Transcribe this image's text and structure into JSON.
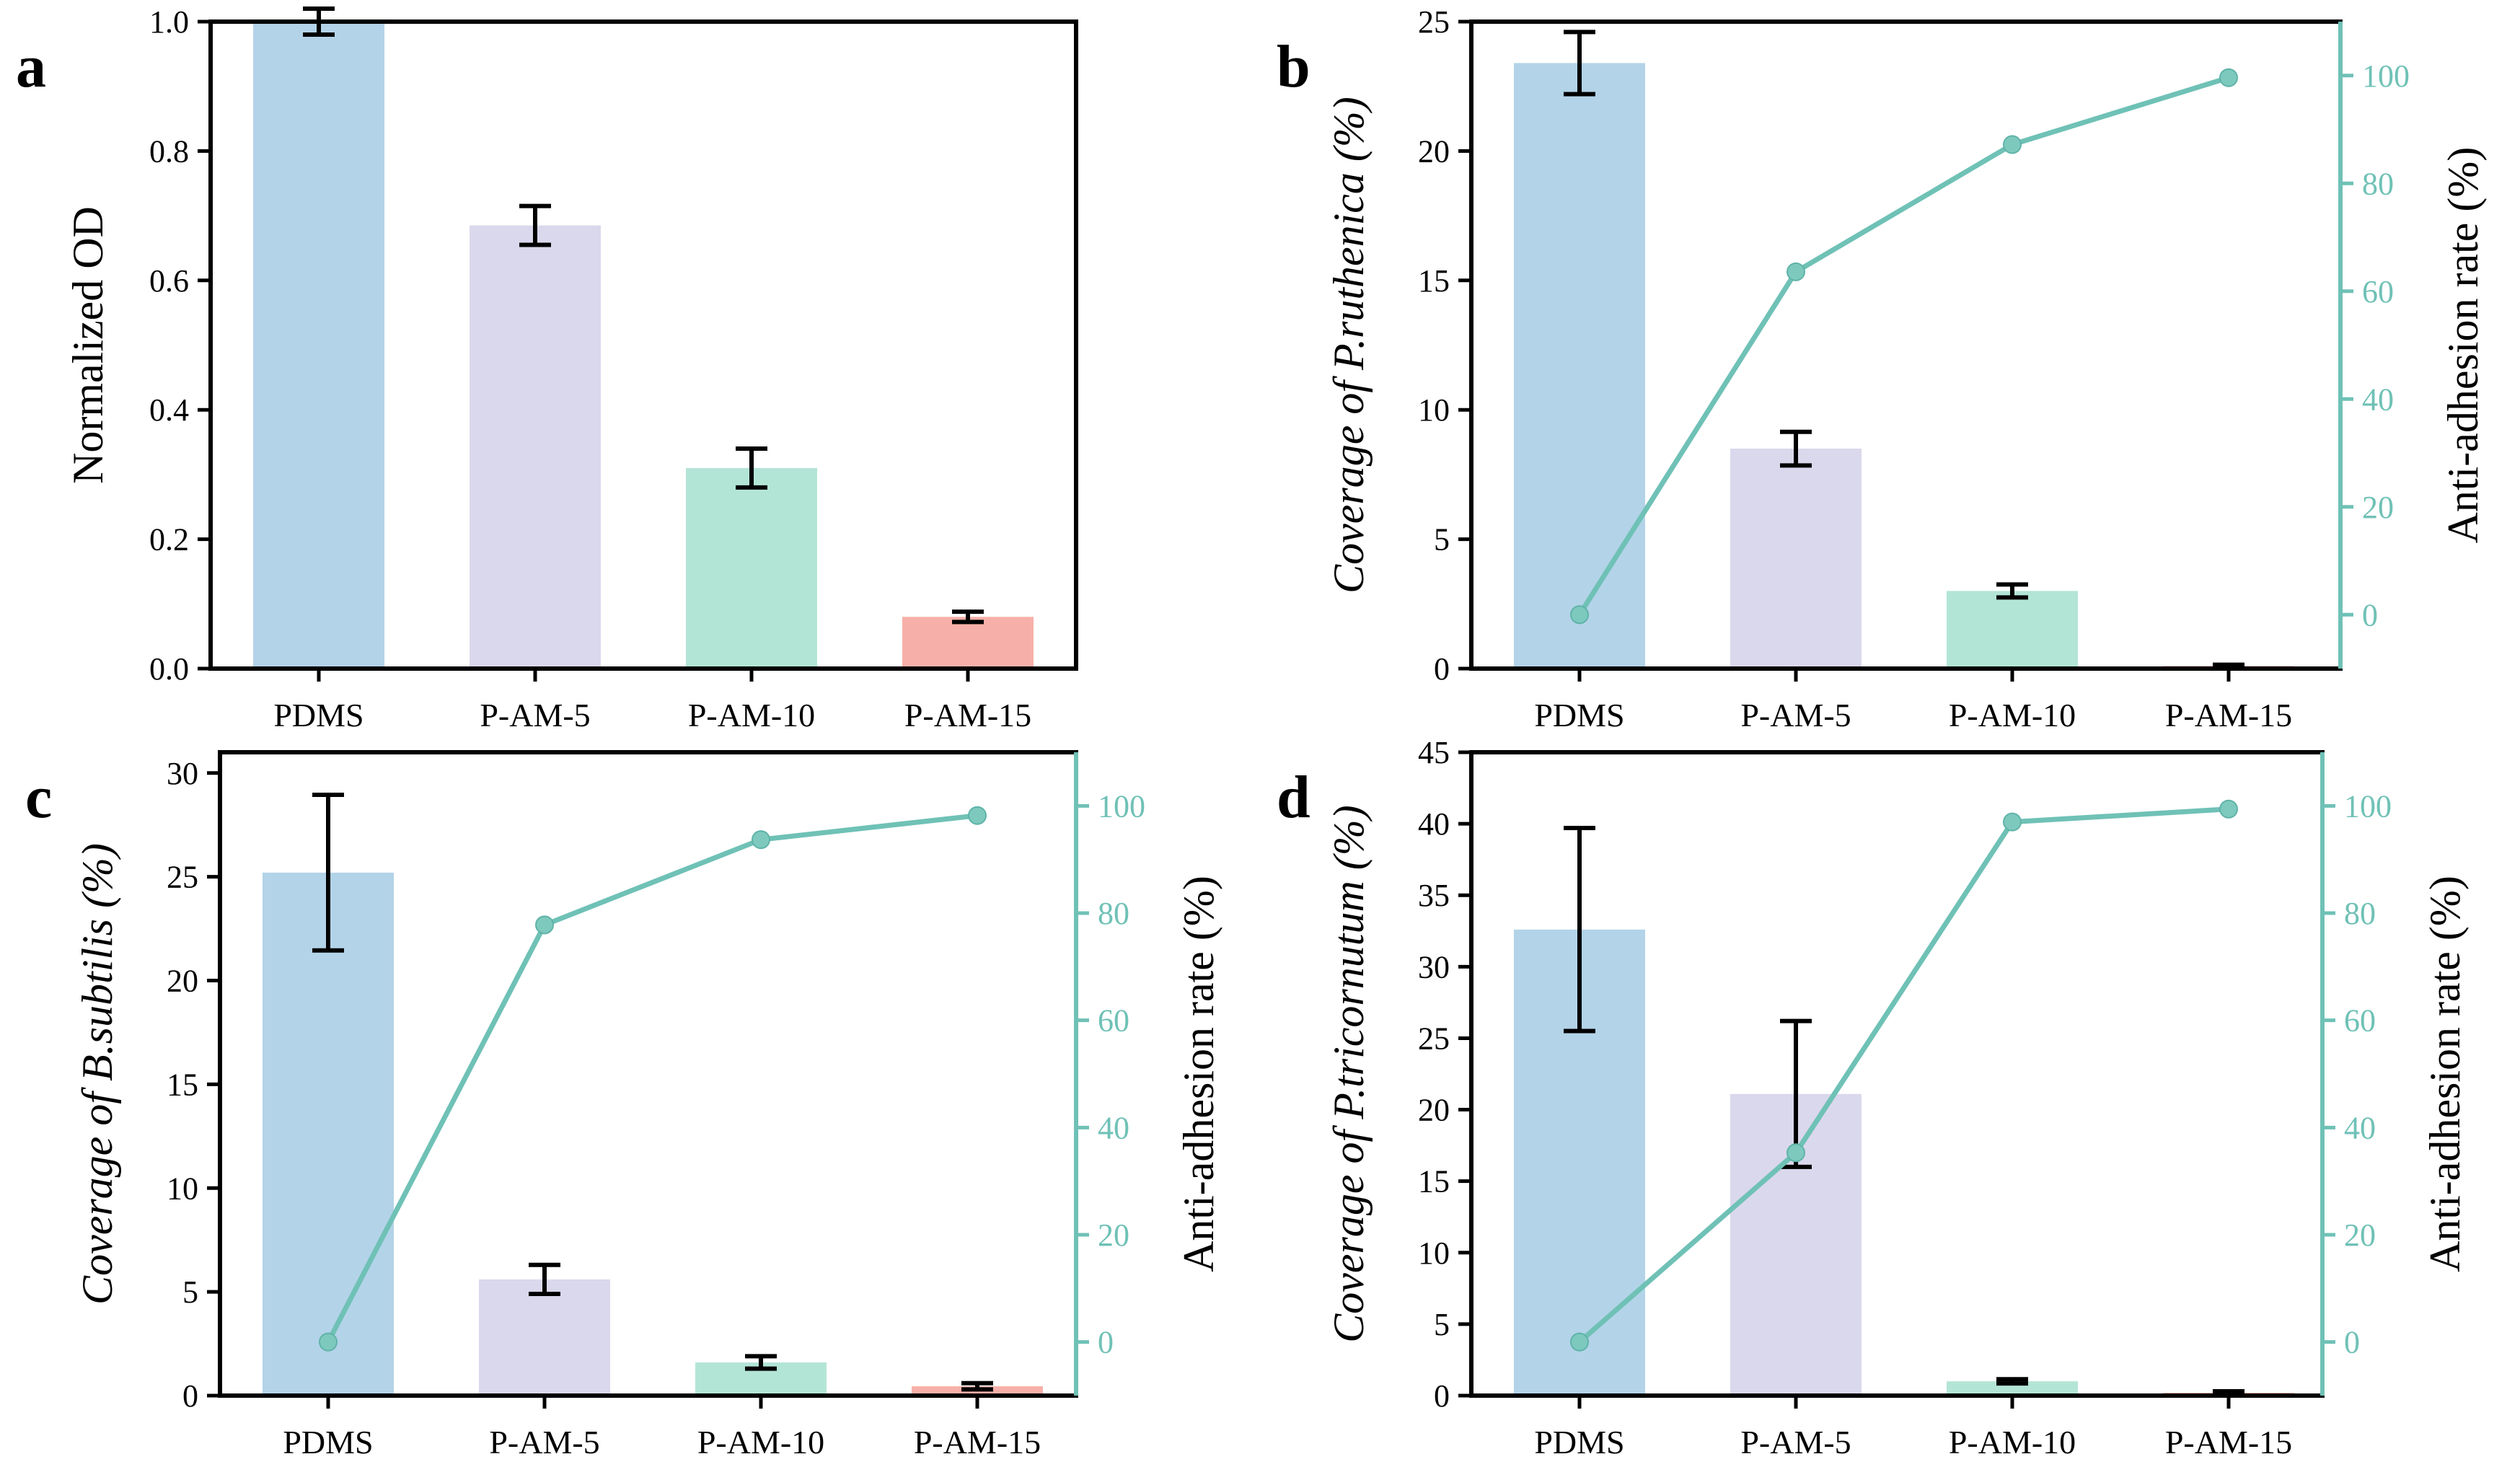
{
  "colors": {
    "bars": [
      "#b3d3e8",
      "#dad8ec",
      "#b3e5d7",
      "#f7b0a9"
    ],
    "line": "#6fc1b6",
    "marker": "#7ec9be",
    "axis": "#000000",
    "right_axis": "#6fc1b6"
  },
  "chart_data": [
    {
      "panel": "a",
      "type": "bar",
      "categories": [
        "PDMS",
        "P-AM-5",
        "P-AM-10",
        "P-AM-15"
      ],
      "values": [
        1.0,
        0.685,
        0.31,
        0.08
      ],
      "errors": [
        0.02,
        0.03,
        0.03,
        0.008
      ],
      "ylabel": "Normalized OD",
      "ylabel_italic": false,
      "ylim": [
        0,
        1.0
      ],
      "yticks": [
        "0.0",
        "0.2",
        "0.4",
        "0.6",
        "0.8",
        "1.0"
      ]
    },
    {
      "panel": "b",
      "type": "bar+line",
      "categories": [
        "PDMS",
        "P-AM-5",
        "P-AM-10",
        "P-AM-15"
      ],
      "values": [
        23.4,
        8.5,
        3.0,
        0.1
      ],
      "errors": [
        1.2,
        0.65,
        0.25,
        0.05
      ],
      "ylabel": "Coverage of P.ruthenica (%)",
      "ylabel_italic": true,
      "ylim": [
        0,
        25
      ],
      "yticks": [
        "0",
        "5",
        "10",
        "15",
        "20",
        "25"
      ],
      "line_values": [
        0,
        63.6,
        87.2,
        99.6
      ],
      "y2label": "Anti-adhesion rate (%)",
      "y2lim": [
        -10,
        110
      ],
      "y2ticks": [
        "0",
        "20",
        "40",
        "60",
        "80",
        "100"
      ]
    },
    {
      "panel": "c",
      "type": "bar+line",
      "categories": [
        "PDMS",
        "P-AM-5",
        "P-AM-10",
        "P-AM-15"
      ],
      "values": [
        25.2,
        5.6,
        1.6,
        0.45
      ],
      "errors": [
        3.75,
        0.7,
        0.3,
        0.15
      ],
      "ylabel": "Coverage of B.subtilis (%)",
      "ylabel_italic": true,
      "ylim": [
        0,
        31
      ],
      "yticks": [
        "0",
        "5",
        "10",
        "15",
        "20",
        "25",
        "30"
      ],
      "line_values": [
        0,
        77.8,
        93.7,
        98.2
      ],
      "y2label": "Anti-adhesion rate (%)",
      "y2lim": [
        -10,
        110
      ],
      "y2ticks": [
        "0",
        "20",
        "40",
        "60",
        "80",
        "100"
      ]
    },
    {
      "panel": "d",
      "type": "bar+line",
      "categories": [
        "PDMS",
        "P-AM-5",
        "P-AM-10",
        "P-AM-15"
      ],
      "values": [
        32.6,
        21.1,
        1.0,
        0.2
      ],
      "errors": [
        7.1,
        5.1,
        0.15,
        0.1
      ],
      "ylabel": "Coverage of P.tricornutum (%)",
      "ylabel_italic": true,
      "ylim": [
        0,
        45
      ],
      "yticks": [
        "0",
        "5",
        "10",
        "15",
        "20",
        "25",
        "30",
        "35",
        "40",
        "45"
      ],
      "line_values": [
        0,
        35.3,
        97.0,
        99.4
      ],
      "y2label": "Anti-adhesion rate (%)",
      "y2lim": [
        -10,
        110
      ],
      "y2ticks": [
        "0",
        "20",
        "40",
        "60",
        "80",
        "100"
      ]
    }
  ]
}
